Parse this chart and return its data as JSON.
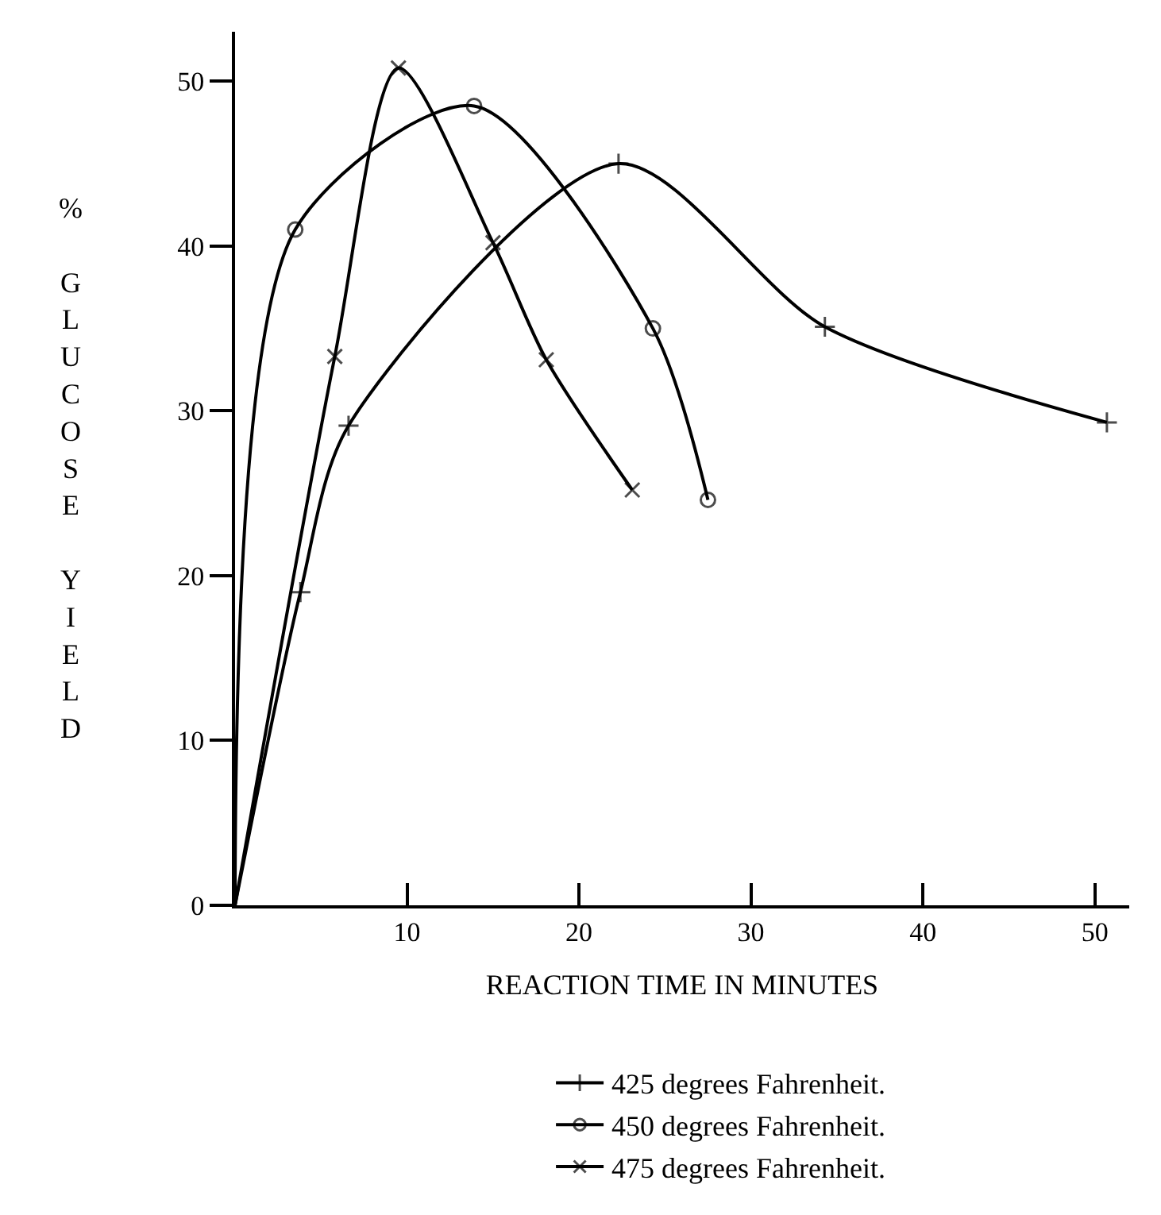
{
  "chart_data": {
    "type": "line",
    "xlabel": "REACTION TIME IN MINUTES",
    "ylabel": "% GLUCOSE YIELD",
    "xlim": [
      0,
      52
    ],
    "xticks": [
      10,
      20,
      30,
      40,
      50
    ],
    "ylim": [
      0,
      53
    ],
    "yticks": [
      0,
      10,
      20,
      30,
      40,
      50
    ],
    "legend": "bottom",
    "series": [
      {
        "name": "425 degrees Fahrenheit.",
        "color": "#000000",
        "marker": "cross",
        "x": [
          0,
          3.8,
          6.6,
          22.3,
          34.3,
          50.7
        ],
        "values": [
          0,
          19.0,
          29.1,
          45.0,
          35.1,
          29.3
        ]
      },
      {
        "name": "450 degrees Fahrenheit.",
        "color": "#000000",
        "marker": "circle",
        "x": [
          0,
          3.5,
          13.9,
          24.3,
          27.5
        ],
        "values": [
          0,
          41.0,
          48.5,
          35.0,
          24.6
        ]
      },
      {
        "name": "475 degrees Fahrenheit.",
        "color": "#000000",
        "marker": "x",
        "x": [
          0,
          5.8,
          9.5,
          15.0,
          18.1,
          23.1
        ],
        "values": [
          0,
          33.3,
          50.8,
          40.2,
          33.1,
          25.2
        ]
      }
    ]
  }
}
